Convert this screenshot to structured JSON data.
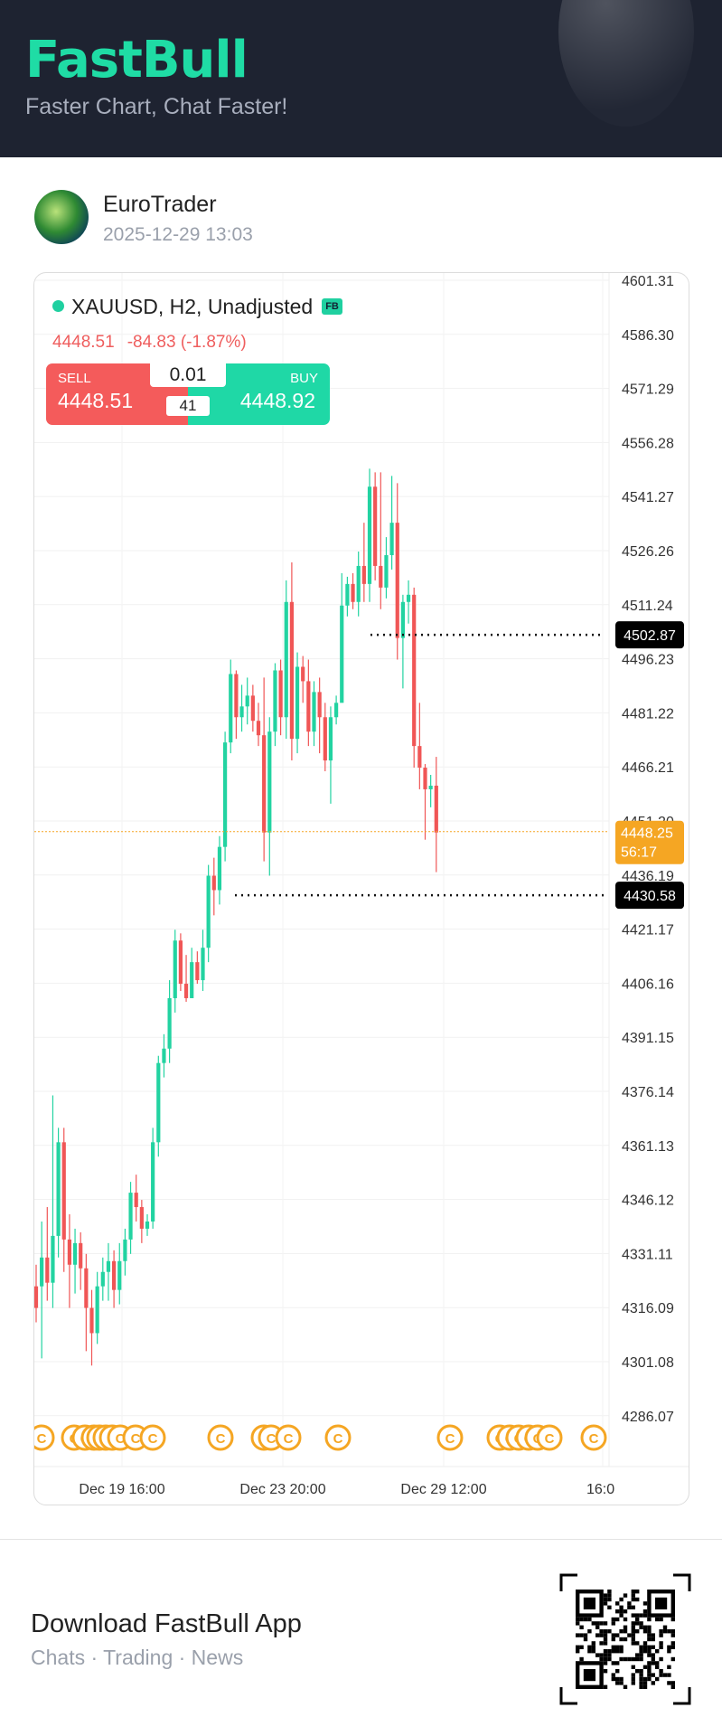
{
  "header": {
    "brand": "FastBull",
    "tagline": "Faster Chart, Chat Faster!"
  },
  "post": {
    "username": "EuroTrader",
    "timestamp": "2025-12-29 13:03"
  },
  "instrument": {
    "title": "XAUUSD, H2, Unadjusted",
    "badge": "FB",
    "price": "4448.51",
    "change": "-84.83 (-1.87%)"
  },
  "trade_panel": {
    "sell_label": "SELL",
    "sell_price": "4448.51",
    "buy_label": "BUY",
    "buy_price": "4448.92",
    "quantity": "0.01",
    "spread": "41"
  },
  "chart_data": {
    "type": "candlestick",
    "title": "XAUUSD, H2, Unadjusted",
    "y_ticks": [
      "4601.31",
      "4586.30",
      "4571.29",
      "4556.28",
      "4541.27",
      "4526.26",
      "4511.24",
      "4496.23",
      "4481.22",
      "4466.21",
      "4451.20",
      "4436.19",
      "4421.17",
      "4406.16",
      "4391.15",
      "4376.14",
      "4361.13",
      "4346.12",
      "4331.11",
      "4316.09",
      "4301.08",
      "4286.07"
    ],
    "ylim": [
      4286.07,
      4601.31
    ],
    "x_ticks": [
      "Dec 19 16:00",
      "Dec 23 20:00",
      "Dec 29 12:00",
      "16:0"
    ],
    "current_price": {
      "value": "4448.25",
      "countdown": "56:17"
    },
    "levels": [
      {
        "value": "4502.87"
      },
      {
        "value": "4430.58"
      }
    ],
    "event_marker_label": "C",
    "event_marker_count": 23,
    "colors": {
      "up": "#22d3a1",
      "down": "#f05656",
      "current": "#f5a623",
      "event": "#f5a623"
    },
    "candles": [
      [
        4322,
        4316,
        4328,
        4312
      ],
      [
        4322,
        4330,
        4340,
        4302
      ],
      [
        4330,
        4323,
        4344,
        4318
      ],
      [
        4323,
        4336,
        4375,
        4316
      ],
      [
        4336,
        4362,
        4366,
        4330
      ],
      [
        4362,
        4335,
        4366,
        4326
      ],
      [
        4335,
        4328,
        4342,
        4316
      ],
      [
        4328,
        4334,
        4338,
        4320
      ],
      [
        4334,
        4327,
        4337,
        4321
      ],
      [
        4327,
        4316,
        4331,
        4304
      ],
      [
        4316,
        4309,
        4321,
        4300
      ],
      [
        4309,
        4322,
        4326,
        4306
      ],
      [
        4322,
        4326,
        4330,
        4318
      ],
      [
        4326,
        4329,
        4334,
        4318
      ],
      [
        4329,
        4321,
        4332,
        4316
      ],
      [
        4321,
        4329,
        4334,
        4317
      ],
      [
        4329,
        4335,
        4338,
        4325
      ],
      [
        4335,
        4348,
        4351,
        4331
      ],
      [
        4348,
        4344,
        4353,
        4340
      ],
      [
        4344,
        4338,
        4346,
        4334
      ],
      [
        4338,
        4340,
        4342,
        4336
      ],
      [
        4340,
        4362,
        4366,
        4338
      ],
      [
        4362,
        4384,
        4386,
        4358
      ],
      [
        4384,
        4388,
        4392,
        4380
      ],
      [
        4388,
        4402,
        4407,
        4384
      ],
      [
        4402,
        4418,
        4421,
        4398
      ],
      [
        4418,
        4406,
        4420,
        4404
      ],
      [
        4406,
        4402,
        4414,
        4401
      ],
      [
        4402,
        4412,
        4416,
        4406
      ],
      [
        4412,
        4407,
        4415,
        4406
      ],
      [
        4407,
        4416,
        4421,
        4404
      ],
      [
        4416,
        4436,
        4439,
        4412
      ],
      [
        4436,
        4432,
        4441,
        4425
      ],
      [
        4432,
        4444,
        4447,
        4428
      ],
      [
        4444,
        4473,
        4476,
        4440
      ],
      [
        4473,
        4492,
        4496,
        4470
      ],
      [
        4492,
        4480,
        4493,
        4474
      ],
      [
        4480,
        4483,
        4489,
        4476
      ],
      [
        4483,
        4486,
        4491,
        4478
      ],
      [
        4486,
        4479,
        4489,
        4476
      ],
      [
        4479,
        4475,
        4484,
        4472
      ],
      [
        4475,
        4448,
        4491,
        4440
      ],
      [
        4448,
        4476,
        4480,
        4436
      ],
      [
        4476,
        4493,
        4495,
        4472
      ],
      [
        4493,
        4480,
        4496,
        4475
      ],
      [
        4480,
        4512,
        4518,
        4474
      ],
      [
        4512,
        4474,
        4523,
        4468
      ],
      [
        4474,
        4494,
        4498,
        4470
      ],
      [
        4494,
        4490,
        4497,
        4484
      ],
      [
        4490,
        4476,
        4496,
        4472
      ],
      [
        4476,
        4487,
        4490,
        4472
      ],
      [
        4487,
        4480,
        4491,
        4470
      ],
      [
        4480,
        4468,
        4484,
        4465
      ],
      [
        4468,
        4480,
        4483,
        4456
      ],
      [
        4480,
        4484,
        4486,
        4478
      ],
      [
        4484,
        4511,
        4520,
        4506
      ],
      [
        4511,
        4517,
        4519,
        4508
      ],
      [
        4517,
        4512,
        4520,
        4510
      ],
      [
        4512,
        4522,
        4526,
        4508
      ],
      [
        4522,
        4517,
        4534,
        4512
      ],
      [
        4517,
        4544,
        4549,
        4512
      ],
      [
        4544,
        4522,
        4548,
        4518
      ],
      [
        4522,
        4516,
        4548,
        4510
      ],
      [
        4516,
        4525,
        4530,
        4513
      ],
      [
        4525,
        4534,
        4547,
        4521
      ],
      [
        4534,
        4502,
        4545,
        4496
      ],
      [
        4502,
        4512,
        4514,
        4488
      ],
      [
        4512,
        4514,
        4518,
        4506
      ],
      [
        4514,
        4472,
        4516,
        4466
      ],
      [
        4472,
        4466,
        4484,
        4460
      ],
      [
        4466,
        4460,
        4467,
        4446
      ],
      [
        4460,
        4461,
        4464,
        4455
      ],
      [
        4461,
        4448,
        4469,
        4437
      ]
    ]
  }
}
